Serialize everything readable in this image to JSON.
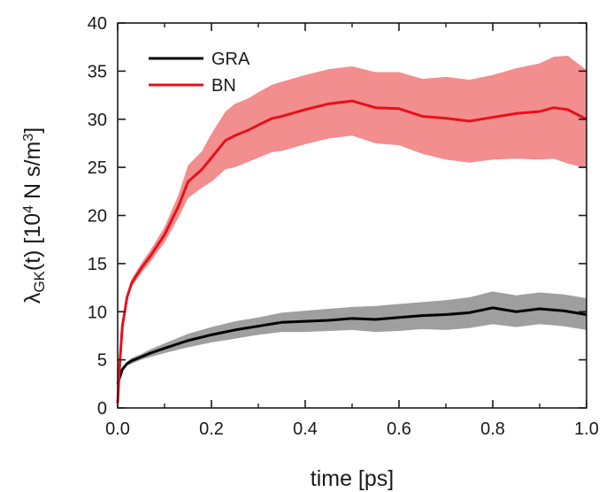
{
  "chart_data": {
    "type": "line",
    "xlabel": "time [ps]",
    "ylabel": {
      "symbol": "λ",
      "symbol_sub": "GK",
      "main": "(t) [10",
      "exp": "4",
      "unit": " N s/m",
      "unit_exp": "3",
      "close": "]"
    },
    "xlim": [
      0.0,
      1.0
    ],
    "ylim": [
      0,
      40
    ],
    "xticks": [
      "0.0",
      "0.2",
      "0.4",
      "0.6",
      "0.8",
      "1.0"
    ],
    "yticks": [
      "0",
      "5",
      "10",
      "15",
      "20",
      "25",
      "30",
      "35",
      "40"
    ],
    "legend_position": "top-left",
    "grid": false,
    "series": [
      {
        "name": "GRA",
        "color": "#000000",
        "band_color": "#7f7f7f",
        "x": [
          0.0,
          0.01,
          0.02,
          0.03,
          0.05,
          0.07,
          0.1,
          0.15,
          0.2,
          0.25,
          0.3,
          0.35,
          0.4,
          0.45,
          0.5,
          0.55,
          0.6,
          0.65,
          0.7,
          0.75,
          0.8,
          0.85,
          0.9,
          0.95,
          1.0
        ],
        "y": [
          2.5,
          4.0,
          4.6,
          4.9,
          5.3,
          5.7,
          6.2,
          7.0,
          7.6,
          8.1,
          8.5,
          8.9,
          9.0,
          9.1,
          9.3,
          9.2,
          9.4,
          9.6,
          9.7,
          9.9,
          10.4,
          10.0,
          10.3,
          10.1,
          9.7
        ],
        "lower": [
          2.3,
          3.8,
          4.4,
          4.6,
          5.0,
          5.3,
          5.7,
          6.3,
          6.8,
          7.2,
          7.6,
          7.9,
          7.9,
          8.0,
          8.1,
          7.9,
          8.0,
          8.2,
          8.1,
          8.3,
          8.7,
          8.4,
          8.7,
          8.5,
          8.1
        ],
        "upper": [
          2.7,
          4.2,
          4.8,
          5.2,
          5.6,
          6.1,
          6.7,
          7.7,
          8.4,
          9.0,
          9.4,
          9.9,
          10.1,
          10.3,
          10.5,
          10.6,
          10.8,
          11.0,
          11.2,
          11.5,
          12.1,
          11.7,
          12.0,
          11.8,
          11.4
        ]
      },
      {
        "name": "BN",
        "color": "#e8101a",
        "band_color": "#f07a7a",
        "x": [
          0.0,
          0.005,
          0.01,
          0.02,
          0.03,
          0.05,
          0.07,
          0.1,
          0.13,
          0.15,
          0.18,
          0.2,
          0.23,
          0.25,
          0.28,
          0.3,
          0.33,
          0.35,
          0.4,
          0.45,
          0.5,
          0.55,
          0.6,
          0.65,
          0.7,
          0.75,
          0.8,
          0.85,
          0.9,
          0.93,
          0.96,
          1.0
        ],
        "y": [
          0.5,
          5.0,
          8.5,
          11.5,
          13.0,
          14.5,
          15.8,
          18.0,
          21.0,
          23.5,
          24.8,
          26.0,
          27.8,
          28.3,
          28.9,
          29.4,
          30.1,
          30.3,
          31.0,
          31.6,
          31.9,
          31.2,
          31.1,
          30.3,
          30.1,
          29.8,
          30.2,
          30.6,
          30.8,
          31.2,
          31.0,
          30.0
        ],
        "lower": [
          0.5,
          4.9,
          8.3,
          11.2,
          12.6,
          14.0,
          15.2,
          17.2,
          19.8,
          21.8,
          22.9,
          23.5,
          24.8,
          25.0,
          25.6,
          26.0,
          26.6,
          26.7,
          27.4,
          28.0,
          28.3,
          27.5,
          27.3,
          26.4,
          25.8,
          25.5,
          25.8,
          25.9,
          25.8,
          25.9,
          25.4,
          24.9
        ],
        "upper": [
          0.5,
          5.1,
          8.7,
          11.8,
          13.4,
          15.0,
          16.4,
          18.8,
          22.2,
          25.2,
          26.7,
          28.5,
          30.8,
          31.6,
          32.2,
          32.8,
          33.6,
          33.9,
          34.6,
          35.2,
          35.5,
          34.9,
          34.9,
          34.2,
          34.4,
          34.1,
          34.6,
          35.3,
          35.8,
          36.5,
          36.6,
          35.1
        ]
      }
    ]
  }
}
